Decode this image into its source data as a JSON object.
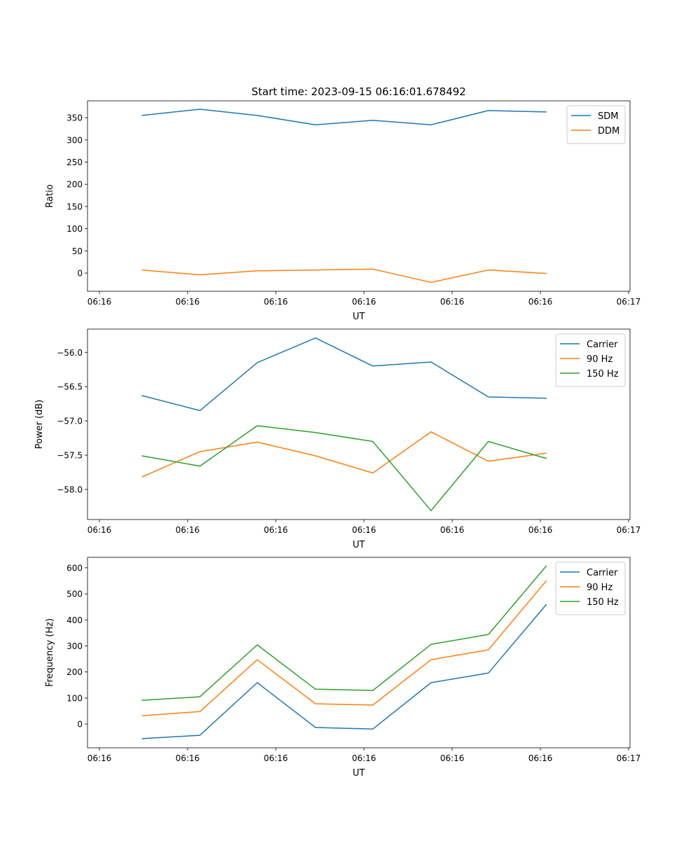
{
  "chart_data": [
    {
      "type": "line",
      "title": "Start time: 2023-09-15 06:16:01.678492",
      "xlabel": "UT",
      "ylabel": "Ratio",
      "x_seconds_after_0616": [
        4.8,
        11.4,
        17.9,
        24.5,
        31.0,
        37.6,
        44.1,
        50.7
      ],
      "xlim": [
        -1.35,
        60.16
      ],
      "xticks": [
        0,
        10,
        20,
        30,
        40,
        50,
        60
      ],
      "xtick_labels": [
        "06:16",
        "06:16",
        "06:16",
        "06:16",
        "06:16",
        "06:16",
        "06:17"
      ],
      "ylim": [
        -41,
        388
      ],
      "yticks": [
        0,
        50,
        100,
        150,
        200,
        250,
        300,
        350
      ],
      "ytick_labels": [
        "0",
        "50",
        "100",
        "150",
        "200",
        "250",
        "300",
        "350"
      ],
      "legend": "top-right",
      "series": [
        {
          "name": "SDM",
          "color": "#1f77b4",
          "values": [
            355,
            369,
            355,
            334,
            344,
            334,
            366,
            363
          ]
        },
        {
          "name": "DDM",
          "color": "#ff7f0e",
          "values": [
            7,
            -4,
            5,
            7,
            9,
            -21,
            7,
            -1
          ]
        }
      ]
    },
    {
      "type": "line",
      "xlabel": "UT",
      "ylabel": "Power (dB)",
      "x_seconds_after_0616": [
        4.8,
        11.4,
        17.9,
        24.5,
        31.0,
        37.6,
        44.1,
        50.7
      ],
      "xlim": [
        -1.35,
        60.16
      ],
      "xticks": [
        0,
        10,
        20,
        30,
        40,
        50,
        60
      ],
      "xtick_labels": [
        "06:16",
        "06:16",
        "06:16",
        "06:16",
        "06:16",
        "06:16",
        "06:17"
      ],
      "ylim": [
        -58.44,
        -55.66
      ],
      "yticks": [
        -58.0,
        -57.5,
        -57.0,
        -56.5,
        -56.0
      ],
      "ytick_labels": [
        "−58.0",
        "−57.5",
        "−57.0",
        "−56.5",
        "−56.0"
      ],
      "legend": "top-right",
      "series": [
        {
          "name": "Carrier",
          "color": "#1f77b4",
          "values": [
            -56.63,
            -56.85,
            -56.15,
            -55.79,
            -56.2,
            -56.14,
            -56.65,
            -56.67
          ]
        },
        {
          "name": "90 Hz",
          "color": "#ff7f0e",
          "values": [
            -57.82,
            -57.45,
            -57.31,
            -57.51,
            -57.76,
            -57.16,
            -57.59,
            -57.47
          ]
        },
        {
          "name": "150 Hz",
          "color": "#2ca02c",
          "values": [
            -57.51,
            -57.66,
            -57.07,
            -57.17,
            -57.3,
            -58.31,
            -57.3,
            -57.55
          ]
        }
      ]
    },
    {
      "type": "line",
      "xlabel": "UT",
      "ylabel": "Frequency (Hz)",
      "x_seconds_after_0616": [
        4.8,
        11.4,
        17.9,
        24.5,
        31.0,
        37.6,
        44.1,
        50.7
      ],
      "xlim": [
        -1.35,
        60.16
      ],
      "xticks": [
        0,
        10,
        20,
        30,
        40,
        50,
        60
      ],
      "xtick_labels": [
        "06:16",
        "06:16",
        "06:16",
        "06:16",
        "06:16",
        "06:16",
        "06:17"
      ],
      "ylim": [
        -91,
        640
      ],
      "yticks": [
        0,
        100,
        200,
        300,
        400,
        500,
        600
      ],
      "ytick_labels": [
        "0",
        "100",
        "200",
        "300",
        "400",
        "500",
        "600"
      ],
      "legend": "top-right",
      "series": [
        {
          "name": "Carrier",
          "color": "#1f77b4",
          "values": [
            -56,
            -43,
            159,
            -13,
            -19,
            159,
            196,
            460
          ]
        },
        {
          "name": "90 Hz",
          "color": "#ff7f0e",
          "values": [
            32,
            48,
            247,
            78,
            73,
            247,
            285,
            551
          ]
        },
        {
          "name": "150 Hz",
          "color": "#2ca02c",
          "values": [
            91,
            105,
            304,
            134,
            129,
            306,
            344,
            608
          ]
        }
      ]
    }
  ]
}
